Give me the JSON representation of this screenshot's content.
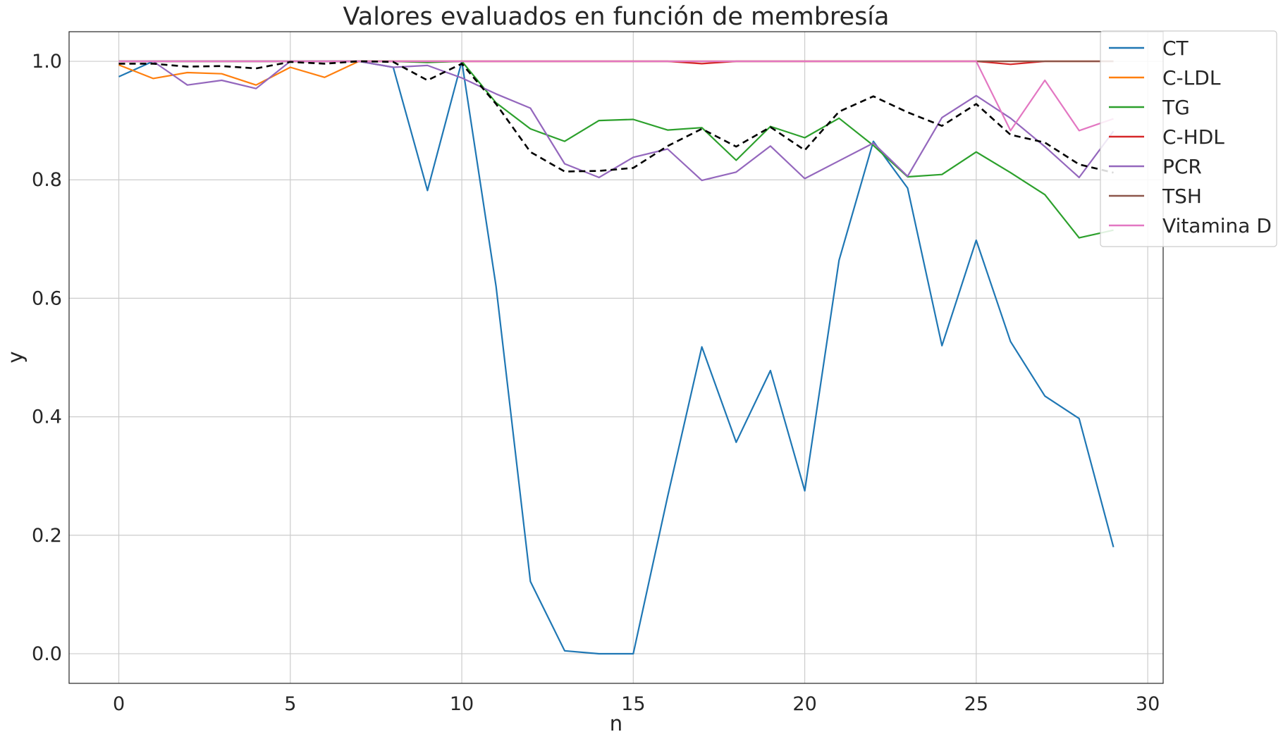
{
  "chart_data": {
    "type": "line",
    "title": "Valores evaluados en función de membresía",
    "xlabel": "n",
    "ylabel": "y",
    "xlim": [
      -1.45,
      30.45
    ],
    "ylim": [
      -0.05,
      1.05
    ],
    "xticks": [
      0,
      5,
      10,
      15,
      20,
      25,
      30
    ],
    "yticks": [
      0.0,
      0.2,
      0.4,
      0.6,
      0.8,
      1.0
    ],
    "grid": true,
    "legend_position": "top-right",
    "x": [
      0,
      1,
      2,
      3,
      4,
      5,
      6,
      7,
      8,
      9,
      10,
      11,
      12,
      13,
      14,
      15,
      16,
      17,
      18,
      19,
      20,
      21,
      22,
      23,
      24,
      25,
      26,
      27,
      28,
      29
    ],
    "series": [
      {
        "name": "CT",
        "color": "#1f77b4",
        "dashed": false,
        "values": [
          0.974,
          1.0,
          1.0,
          1.0,
          1.0,
          1.0,
          1.0,
          1.0,
          0.99,
          0.782,
          1.0,
          0.62,
          0.122,
          0.005,
          0.0,
          0.0,
          0.265,
          0.518,
          0.357,
          0.478,
          0.275,
          0.664,
          0.865,
          0.786,
          0.52,
          0.698,
          0.527,
          0.435,
          0.397,
          0.18
        ]
      },
      {
        "name": "C-LDL",
        "color": "#ff7f0e",
        "dashed": false,
        "values": [
          0.994,
          0.971,
          0.981,
          0.979,
          0.96,
          0.99,
          0.973,
          1.0,
          1.0,
          1.0,
          1.0,
          1.0,
          1.0,
          1.0,
          1.0,
          1.0,
          1.0,
          1.0,
          1.0,
          1.0,
          1.0,
          1.0,
          1.0,
          1.0,
          1.0,
          1.0,
          1.0,
          1.0,
          1.0,
          1.0
        ]
      },
      {
        "name": "TG",
        "color": "#2ca02c",
        "dashed": false,
        "values": [
          1.0,
          1.0,
          1.0,
          1.0,
          1.0,
          1.0,
          1.0,
          1.0,
          1.0,
          0.998,
          1.0,
          0.93,
          0.886,
          0.865,
          0.9,
          0.902,
          0.884,
          0.888,
          0.833,
          0.89,
          0.871,
          0.904,
          0.858,
          0.805,
          0.809,
          0.847,
          0.812,
          0.775,
          0.702,
          0.715
        ]
      },
      {
        "name": "C-HDL",
        "color": "#d62728",
        "dashed": false,
        "values": [
          1.0,
          1.0,
          1.0,
          1.0,
          1.0,
          1.0,
          1.0,
          1.0,
          1.0,
          1.0,
          1.0,
          1.0,
          1.0,
          1.0,
          1.0,
          1.0,
          1.0,
          0.996,
          1.0,
          1.0,
          1.0,
          1.0,
          1.0,
          1.0,
          1.0,
          1.0,
          0.995,
          1.0,
          1.0,
          1.0
        ]
      },
      {
        "name": "PCR",
        "color": "#9467bd",
        "dashed": false,
        "values": [
          1.0,
          1.0,
          0.96,
          0.968,
          0.954,
          1.0,
          1.0,
          1.0,
          0.99,
          0.993,
          0.972,
          0.945,
          0.921,
          0.827,
          0.804,
          0.838,
          0.852,
          0.799,
          0.813,
          0.857,
          0.802,
          0.832,
          0.862,
          0.806,
          0.905,
          0.942,
          0.904,
          0.856,
          0.804,
          0.882
        ]
      },
      {
        "name": "TSH",
        "color": "#8c564b",
        "dashed": false,
        "values": [
          1.0,
          1.0,
          1.0,
          1.0,
          1.0,
          1.0,
          1.0,
          1.0,
          1.0,
          1.0,
          1.0,
          1.0,
          1.0,
          1.0,
          1.0,
          1.0,
          1.0,
          1.0,
          1.0,
          1.0,
          1.0,
          1.0,
          1.0,
          1.0,
          1.0,
          1.0,
          1.0,
          1.0,
          1.0,
          1.0
        ]
      },
      {
        "name": "Vitamina D",
        "color": "#e377c2",
        "dashed": false,
        "values": [
          1.0,
          1.0,
          1.0,
          1.0,
          1.0,
          1.0,
          1.0,
          1.0,
          1.0,
          1.0,
          1.0,
          1.0,
          1.0,
          1.0,
          1.0,
          1.0,
          1.0,
          1.0,
          1.0,
          1.0,
          1.0,
          1.0,
          1.0,
          1.0,
          1.0,
          1.0,
          0.883,
          0.968,
          0.883,
          0.903
        ]
      },
      {
        "color": "#000000",
        "dashed": true,
        "values": [
          0.996,
          0.996,
          0.991,
          0.992,
          0.988,
          0.999,
          0.996,
          1.0,
          0.999,
          0.968,
          0.996,
          0.928,
          0.847,
          0.814,
          0.815,
          0.82,
          0.857,
          0.886,
          0.856,
          0.889,
          0.85,
          0.915,
          0.941,
          0.914,
          0.891,
          0.928,
          0.876,
          0.863,
          0.826,
          0.812
        ]
      }
    ]
  }
}
